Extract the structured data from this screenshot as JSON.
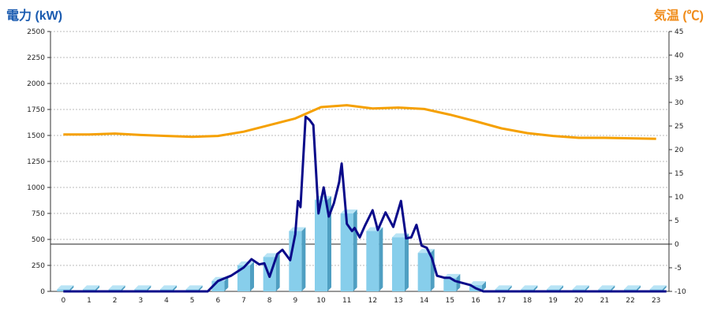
{
  "chart_data": {
    "type": "bar+line",
    "ylabel_left": "電力 (kW)",
    "ylabel_right": "気温 (℃)",
    "x_ticks": [
      "0",
      "1",
      "2",
      "3",
      "4",
      "5",
      "6",
      "7",
      "8",
      "9",
      "10",
      "11",
      "12",
      "13",
      "14",
      "15",
      "16",
      "17",
      "18",
      "19",
      "20",
      "21",
      "22",
      "23"
    ],
    "ylim_left": [
      0,
      2500
    ],
    "y_ticks_left": [
      "0",
      "250",
      "500",
      "750",
      "1000",
      "1250",
      "1500",
      "1750",
      "2000",
      "2250",
      "2500"
    ],
    "ylim_right": [
      -10,
      45
    ],
    "y_ticks_right": [
      "-10",
      "-5",
      "0",
      "5",
      "10",
      "15",
      "20",
      "25",
      "30",
      "35",
      "40",
      "45"
    ],
    "grid": true,
    "series": [
      {
        "kind": "bar",
        "axis": "left",
        "color": "#87ceeb",
        "values": [
          20,
          20,
          20,
          20,
          20,
          20,
          100,
          250,
          330,
          580,
          880,
          750,
          580,
          520,
          370,
          130,
          60,
          20,
          20,
          20,
          20,
          20,
          20,
          20
        ]
      },
      {
        "kind": "line",
        "axis": "left",
        "color": "#0a0a8a",
        "points": [
          [
            0,
            0
          ],
          [
            5.6,
            0
          ],
          [
            6,
            100
          ],
          [
            6.5,
            150
          ],
          [
            7,
            230
          ],
          [
            7.3,
            310
          ],
          [
            7.6,
            260
          ],
          [
            7.8,
            270
          ],
          [
            8,
            140
          ],
          [
            8.3,
            360
          ],
          [
            8.5,
            400
          ],
          [
            8.8,
            300
          ],
          [
            9,
            550
          ],
          [
            9.1,
            870
          ],
          [
            9.2,
            810
          ],
          [
            9.4,
            1680
          ],
          [
            9.55,
            1650
          ],
          [
            9.7,
            1600
          ],
          [
            9.9,
            750
          ],
          [
            10.1,
            1000
          ],
          [
            10.3,
            720
          ],
          [
            10.5,
            850
          ],
          [
            10.7,
            1050
          ],
          [
            10.8,
            1230
          ],
          [
            11,
            650
          ],
          [
            11.2,
            580
          ],
          [
            11.3,
            610
          ],
          [
            11.5,
            520
          ],
          [
            11.7,
            630
          ],
          [
            12,
            780
          ],
          [
            12.2,
            590
          ],
          [
            12.5,
            760
          ],
          [
            12.8,
            620
          ],
          [
            13.1,
            870
          ],
          [
            13.3,
            510
          ],
          [
            13.5,
            520
          ],
          [
            13.7,
            640
          ],
          [
            13.9,
            440
          ],
          [
            14.1,
            420
          ],
          [
            14.3,
            320
          ],
          [
            14.5,
            150
          ],
          [
            14.8,
            130
          ],
          [
            15,
            130
          ],
          [
            15.2,
            100
          ],
          [
            15.5,
            80
          ],
          [
            15.8,
            60
          ],
          [
            16,
            30
          ],
          [
            16.3,
            0
          ],
          [
            23.4,
            0
          ]
        ]
      },
      {
        "kind": "line",
        "axis": "right",
        "color": "#f5a000",
        "points": [
          [
            0,
            23.2
          ],
          [
            1,
            23.2
          ],
          [
            2,
            23.4
          ],
          [
            3,
            23.1
          ],
          [
            4,
            22.9
          ],
          [
            5,
            22.7
          ],
          [
            6,
            22.9
          ],
          [
            7,
            23.8
          ],
          [
            8,
            25.2
          ],
          [
            9,
            26.6
          ],
          [
            10,
            29.0
          ],
          [
            11,
            29.4
          ],
          [
            12,
            28.7
          ],
          [
            13,
            28.9
          ],
          [
            14,
            28.6
          ],
          [
            15,
            27.4
          ],
          [
            16,
            26.0
          ],
          [
            17,
            24.5
          ],
          [
            18,
            23.5
          ],
          [
            19,
            22.9
          ],
          [
            20,
            22.5
          ],
          [
            21,
            22.5
          ],
          [
            22,
            22.4
          ],
          [
            23,
            22.3
          ]
        ]
      }
    ]
  }
}
